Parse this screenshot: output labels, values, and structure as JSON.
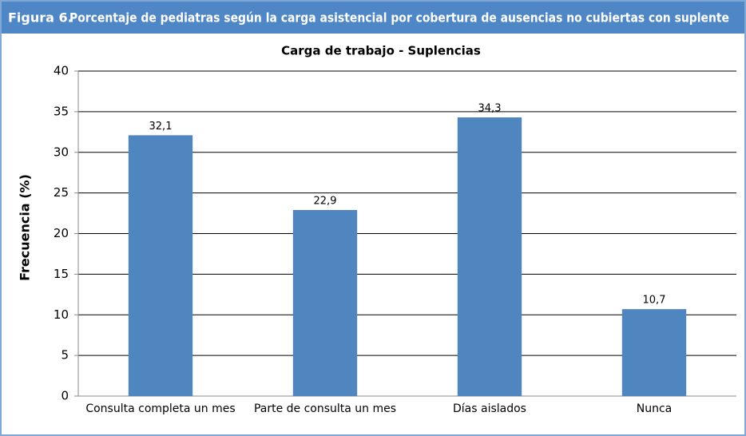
{
  "chart_data": {
    "type": "bar",
    "figure_label": "Figura 6.",
    "title": "Porcentaje de pediatras según la carga asistencial por cobertura de ausencias no cubiertas con suplente",
    "subtitle": "Carga de trabajo - Suplencias",
    "y_label": "Frecuencia (%)",
    "categories": [
      "Consulta completa un mes",
      "Parte de consulta un mes",
      "Días aislados",
      "Nunca"
    ],
    "values": [
      32.1,
      22.9,
      34.3,
      10.7
    ],
    "value_labels": [
      "32,1",
      "22,9",
      "34,3",
      "10,7"
    ],
    "color": "#4f86c0",
    "ylim": [
      0,
      40
    ],
    "yticks": [
      0,
      5,
      10,
      15,
      20,
      25,
      30,
      35,
      40
    ],
    "grid": true
  }
}
